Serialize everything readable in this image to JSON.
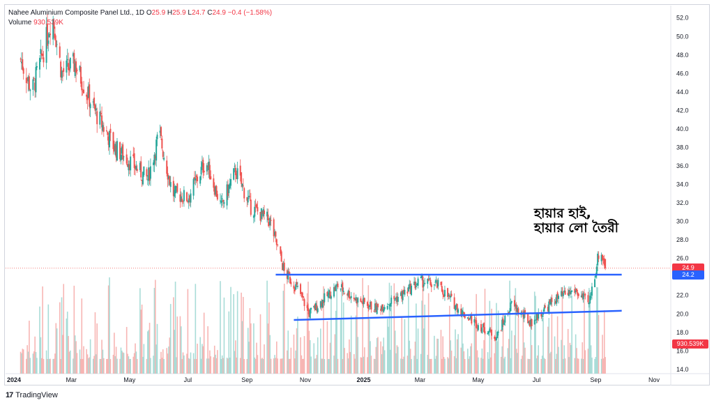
{
  "legend": {
    "symbol": "Nahee Aluminium Composite Panel Ltd., 1D",
    "o_label": "O",
    "o_value": "25.9",
    "h_label": "H",
    "h_value": "25.9",
    "l_label": "L",
    "l_value": "24.7",
    "c_label": "C",
    "c_value": "24.9",
    "change": "−0.4 (−1.58%)",
    "volume_label": "Volume",
    "volume_value": "930.539K"
  },
  "annotation": {
    "line1": "হায়ার হাই,",
    "line2": "হায়ার লো তৈরী"
  },
  "brand": {
    "logo": "17",
    "name": "TradingView"
  },
  "badges": {
    "last_price": "24.9",
    "resistance": "24.2",
    "volume": "930.539K"
  },
  "colors": {
    "up": "#26a69a",
    "down": "#ef5350",
    "trendline": "#2962ff",
    "last_price_badge": "#f23645",
    "resistance_badge": "#2962ff",
    "volume_badge": "#f23645"
  },
  "chart_data": {
    "type": "candlestick",
    "title": "Nahee Aluminium Composite Panel Ltd., 1D",
    "x_tick_labels": [
      "2024",
      "Mar",
      "May",
      "Jul",
      "Sep",
      "Nov",
      "2025",
      "Mar",
      "May",
      "Jul",
      "Sep",
      "Nov"
    ],
    "y_tick_labels": [
      "52.0",
      "50.0",
      "48.0",
      "46.0",
      "44.0",
      "42.0",
      "40.0",
      "38.0",
      "36.0",
      "34.0",
      "32.0",
      "30.0",
      "28.0",
      "26.0",
      "24.0",
      "22.0",
      "20.0",
      "18.0",
      "16.0",
      "14.0"
    ],
    "ylim": [
      14,
      53
    ],
    "last_price": 24.9,
    "approx_close_path": [
      {
        "date": "2024-01-08",
        "close": 47.5
      },
      {
        "date": "2024-01-20",
        "close": 44.0
      },
      {
        "date": "2024-02-05",
        "close": 50.0
      },
      {
        "date": "2024-02-10",
        "close": 52.5
      },
      {
        "date": "2024-02-20",
        "close": 46.0
      },
      {
        "date": "2024-03-05",
        "close": 47.0
      },
      {
        "date": "2024-03-25",
        "close": 42.0
      },
      {
        "date": "2024-04-15",
        "close": 38.0
      },
      {
        "date": "2024-05-01",
        "close": 36.5
      },
      {
        "date": "2024-05-20",
        "close": 34.5
      },
      {
        "date": "2024-06-01",
        "close": 39.5
      },
      {
        "date": "2024-06-15",
        "close": 33.0
      },
      {
        "date": "2024-07-01",
        "close": 32.5
      },
      {
        "date": "2024-07-20",
        "close": 36.5
      },
      {
        "date": "2024-08-05",
        "close": 31.5
      },
      {
        "date": "2024-08-20",
        "close": 35.5
      },
      {
        "date": "2024-09-05",
        "close": 31.5
      },
      {
        "date": "2024-09-25",
        "close": 30.0
      },
      {
        "date": "2024-10-10",
        "close": 24.5
      },
      {
        "date": "2024-10-25",
        "close": 22.5
      },
      {
        "date": "2024-11-05",
        "close": 20.0
      },
      {
        "date": "2024-11-20",
        "close": 21.5
      },
      {
        "date": "2024-12-05",
        "close": 23.0
      },
      {
        "date": "2024-12-25",
        "close": 21.5
      },
      {
        "date": "2025-01-15",
        "close": 20.5
      },
      {
        "date": "2025-02-10",
        "close": 22.0
      },
      {
        "date": "2025-03-01",
        "close": 23.5
      },
      {
        "date": "2025-03-20",
        "close": 23.0
      },
      {
        "date": "2025-04-15",
        "close": 20.0
      },
      {
        "date": "2025-05-05",
        "close": 18.5
      },
      {
        "date": "2025-05-20",
        "close": 17.5
      },
      {
        "date": "2025-06-05",
        "close": 21.0
      },
      {
        "date": "2025-06-25",
        "close": 19.0
      },
      {
        "date": "2025-07-20",
        "close": 21.5
      },
      {
        "date": "2025-08-10",
        "close": 22.5
      },
      {
        "date": "2025-08-25",
        "close": 21.0
      },
      {
        "date": "2025-09-05",
        "close": 27.0
      },
      {
        "date": "2025-09-12",
        "close": 24.9
      }
    ],
    "trendlines": [
      {
        "name": "resistance",
        "from": {
          "date": "2024-10-01",
          "price": 24.2
        },
        "to": {
          "date": "2025-10-31",
          "price": 24.2
        }
      },
      {
        "name": "support",
        "from": {
          "date": "2024-10-20",
          "price": 19.3
        },
        "to": {
          "date": "2025-10-31",
          "price": 20.3
        }
      }
    ]
  }
}
